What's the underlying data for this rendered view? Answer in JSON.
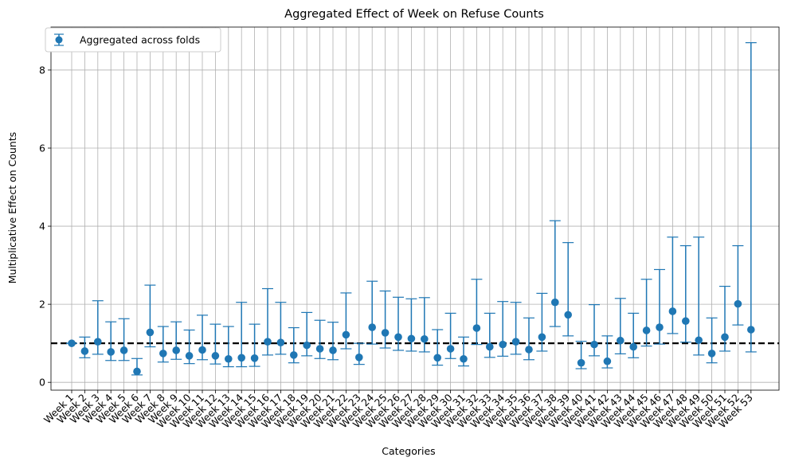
{
  "chart_data": {
    "type": "scatter",
    "title": "Aggregated Effect of Week on Refuse Counts",
    "xlabel": "Categories",
    "ylabel": "Multiplicative Effect on Counts",
    "ylim": [
      -0.2,
      9.1
    ],
    "yticks": [
      0,
      2,
      4,
      6,
      8
    ],
    "grid": true,
    "legend_position": "top-left",
    "reference_line": {
      "y": 1,
      "style": "dashed",
      "color": "#000000"
    },
    "series": [
      {
        "name": "Aggregated across folds",
        "color": "#1f77b4",
        "categories": [
          "Week 1",
          "Week 2",
          "Week 3",
          "Week 4",
          "Week 5",
          "Week 6",
          "Week 7",
          "Week 8",
          "Week 9",
          "Week 10",
          "Week 11",
          "Week 12",
          "Week 13",
          "Week 14",
          "Week 15",
          "Week 16",
          "Week 17",
          "Week 18",
          "Week 19",
          "Week 20",
          "Week 21",
          "Week 22",
          "Week 23",
          "Week 24",
          "Week 25",
          "Week 26",
          "Week 27",
          "Week 28",
          "Week 29",
          "Week 30",
          "Week 31",
          "Week 32",
          "Week 33",
          "Week 34",
          "Week 35",
          "Week 36",
          "Week 37",
          "Week 38",
          "Week 39",
          "Week 40",
          "Week 41",
          "Week 42",
          "Week 43",
          "Week 44",
          "Week 45",
          "Week 46",
          "Week 47",
          "Week 48",
          "Week 49",
          "Week 50",
          "Week 51",
          "Week 52",
          "Week 53"
        ],
        "values": [
          1.0,
          0.8,
          1.04,
          0.78,
          0.82,
          0.28,
          1.28,
          0.74,
          0.82,
          0.68,
          0.83,
          0.68,
          0.6,
          0.63,
          0.62,
          1.04,
          1.02,
          0.7,
          0.95,
          0.86,
          0.82,
          1.22,
          0.64,
          1.41,
          1.27,
          1.16,
          1.12,
          1.11,
          0.63,
          0.86,
          0.6,
          1.39,
          0.91,
          0.97,
          1.04,
          0.84,
          1.16,
          2.05,
          1.73,
          0.5,
          0.97,
          0.54,
          1.07,
          0.91,
          1.33,
          1.41,
          1.82,
          1.57,
          1.08,
          0.74,
          1.16,
          2.01,
          1.35
        ],
        "lower": [
          1.0,
          0.63,
          0.72,
          0.56,
          0.56,
          0.19,
          0.91,
          0.52,
          0.59,
          0.48,
          0.58,
          0.47,
          0.4,
          0.4,
          0.41,
          0.7,
          0.72,
          0.5,
          0.68,
          0.61,
          0.58,
          0.86,
          0.46,
          0.98,
          0.88,
          0.82,
          0.8,
          0.78,
          0.44,
          0.61,
          0.42,
          0.97,
          0.64,
          0.67,
          0.72,
          0.58,
          0.8,
          1.43,
          1.19,
          0.35,
          0.68,
          0.37,
          0.73,
          0.63,
          0.93,
          0.98,
          1.25,
          1.03,
          0.7,
          0.5,
          0.8,
          1.47,
          0.78
        ],
        "upper": [
          1.0,
          1.16,
          2.09,
          1.55,
          1.63,
          0.61,
          2.49,
          1.43,
          1.55,
          1.34,
          1.72,
          1.49,
          1.43,
          2.05,
          1.49,
          2.4,
          2.05,
          1.4,
          1.79,
          1.59,
          1.54,
          2.29,
          1.0,
          2.59,
          2.34,
          2.18,
          2.14,
          2.17,
          1.35,
          1.77,
          1.16,
          2.64,
          1.77,
          2.07,
          2.05,
          1.65,
          2.28,
          4.14,
          3.58,
          1.05,
          1.99,
          1.19,
          2.15,
          1.77,
          2.64,
          2.89,
          3.72,
          3.5,
          3.72,
          1.65,
          2.46,
          3.5,
          8.7
        ]
      }
    ]
  }
}
